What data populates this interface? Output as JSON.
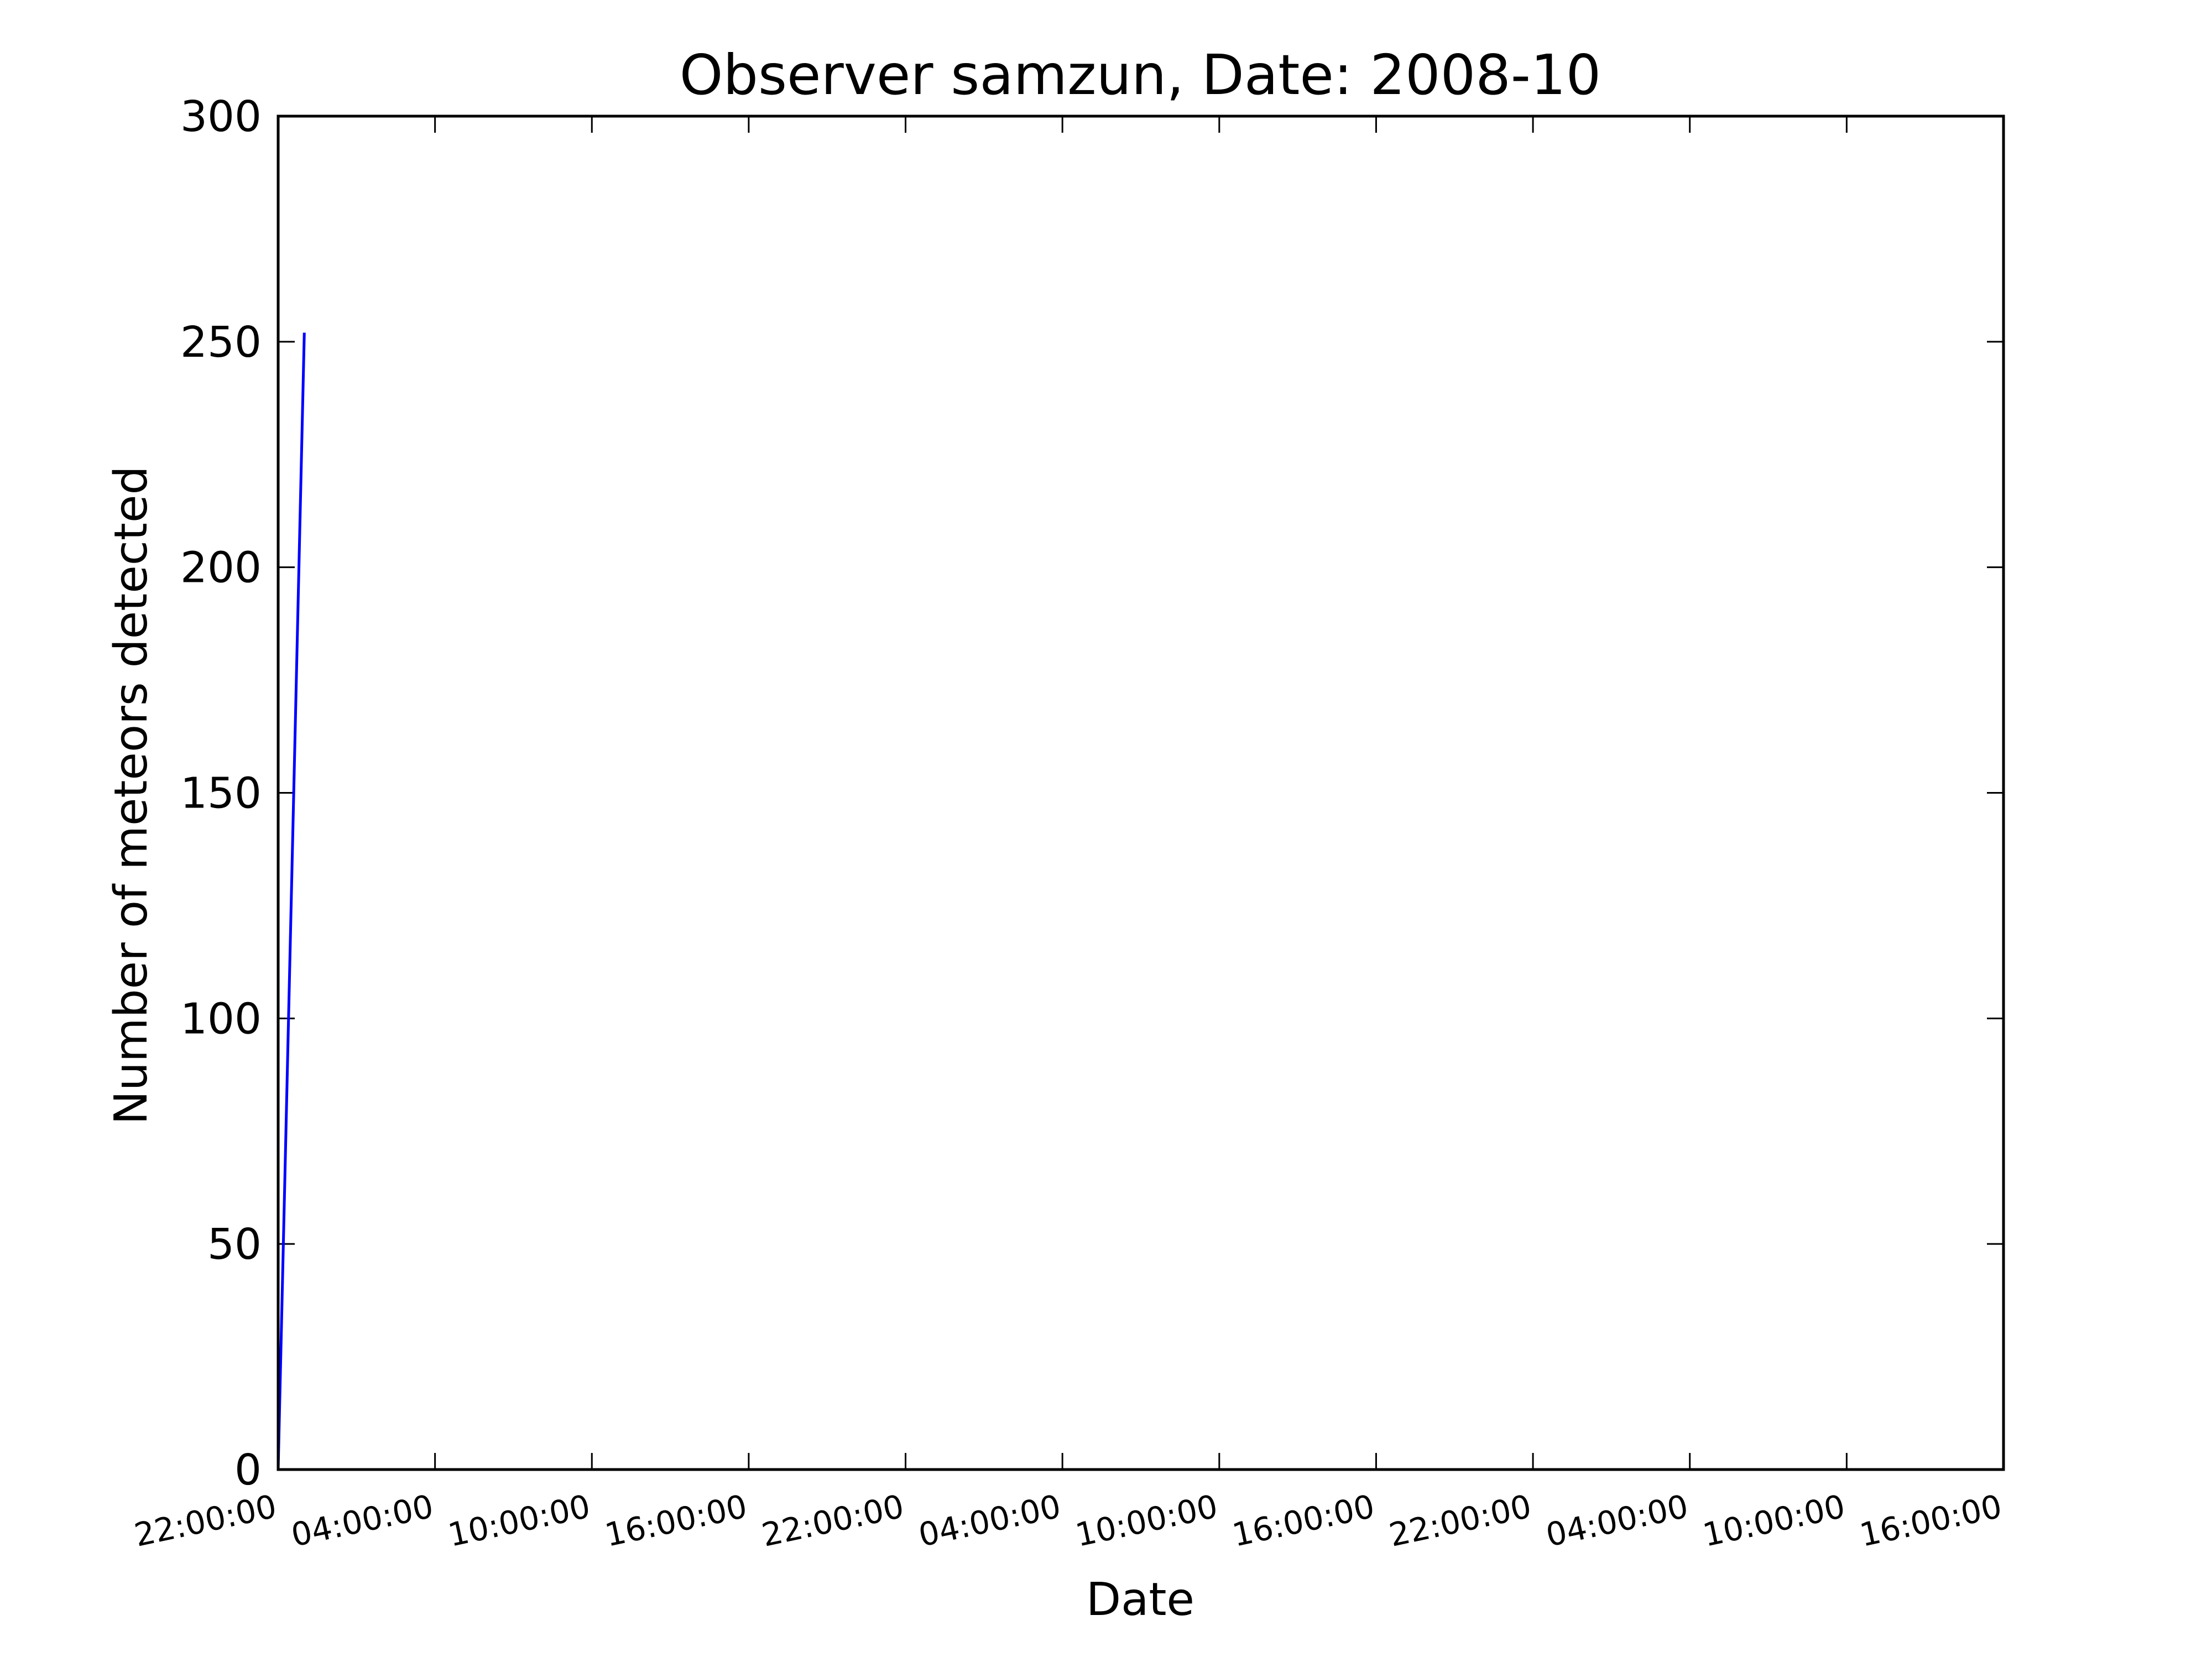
{
  "chart_data": {
    "type": "line",
    "title": "Observer samzun, Date: 2008-10",
    "xlabel": "Date",
    "ylabel": "Number of meteors detected",
    "xticks": [
      "22:00:00",
      "04:00:00",
      "10:00:00",
      "16:00:00",
      "22:00:00",
      "04:00:00",
      "10:00:00",
      "16:00:00",
      "22:00:00",
      "04:00:00",
      "10:00:00",
      "16:00:00"
    ],
    "xlim_hours": [
      0,
      66
    ],
    "ylim": [
      0,
      300
    ],
    "yticks": [
      0,
      50,
      100,
      150,
      200,
      250,
      300
    ],
    "grid": false,
    "legend": "none",
    "series": [
      {
        "color": "#0000ff",
        "x_hours": [
          0,
          1
        ],
        "values": [
          0,
          252
        ]
      }
    ]
  }
}
